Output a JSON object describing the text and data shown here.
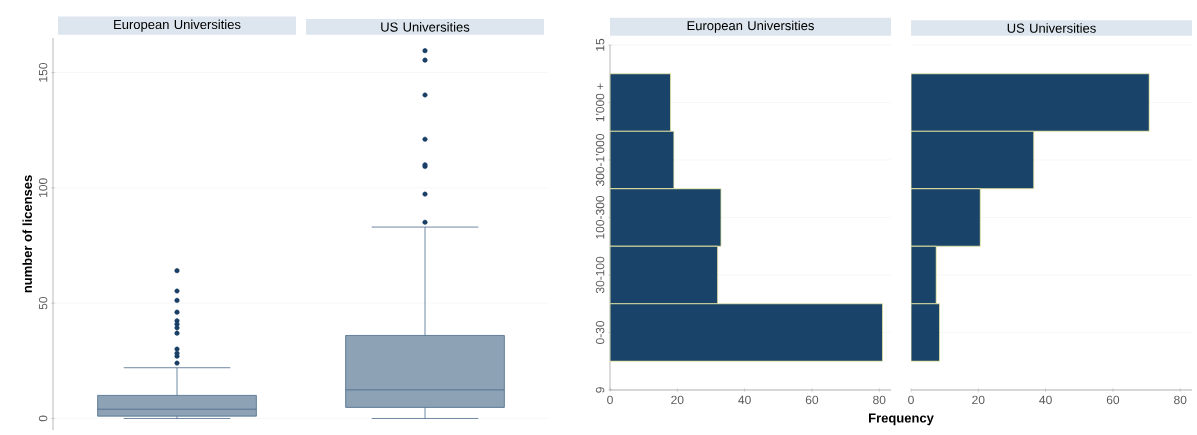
{
  "chart_data": [
    {
      "type": "box",
      "ylabel": "number of licenses",
      "categories": [
        "European Universities",
        "US Universities"
      ],
      "color": "#8da2b5",
      "boxes": [
        {
          "low": 0,
          "q1": 1,
          "median": 4,
          "q3": 10,
          "high": 22,
          "outliers": [
            24,
            27,
            28.3,
            30.1,
            37,
            39.3,
            40.9,
            42.4,
            46.1,
            51.2,
            55.3,
            64.1
          ]
        },
        {
          "low": 0,
          "q1": 4.8,
          "median": 12.4,
          "q3": 36,
          "high": 83,
          "outliers": [
            85.1,
            97.3,
            109.3,
            110,
            121.1,
            140.3,
            155.4,
            159.5
          ]
        }
      ],
      "ylim": [
        -5,
        165
      ],
      "yticks": [
        0,
        50,
        100,
        150
      ],
      "grid": "y"
    },
    {
      "type": "bar",
      "orientation": "horizontal",
      "title": "European Universities",
      "xlabel": "Frequency",
      "color": "#1a4369",
      "categories": [
        "1'000 +",
        "300-1'000",
        "100-300",
        "30-100",
        "0-30"
      ],
      "values": [
        18,
        19,
        33,
        32,
        81
      ],
      "xlim": [
        0,
        83.5
      ],
      "xticks": [
        0,
        20,
        40,
        60,
        80
      ],
      "annotations": [
        "15",
        "9"
      ],
      "grid": "y"
    },
    {
      "type": "bar",
      "orientation": "horizontal",
      "title": "US Universities",
      "color": "#1a4369",
      "categories": [
        null,
        null,
        null,
        null,
        null
      ],
      "values": [
        70.8,
        36.5,
        20.6,
        7.5,
        8.5
      ],
      "xlim": [
        0,
        83.5
      ],
      "xticks": [
        0,
        20,
        40,
        60,
        80
      ],
      "grid": "y",
      "tick_labels": "x"
    }
  ]
}
